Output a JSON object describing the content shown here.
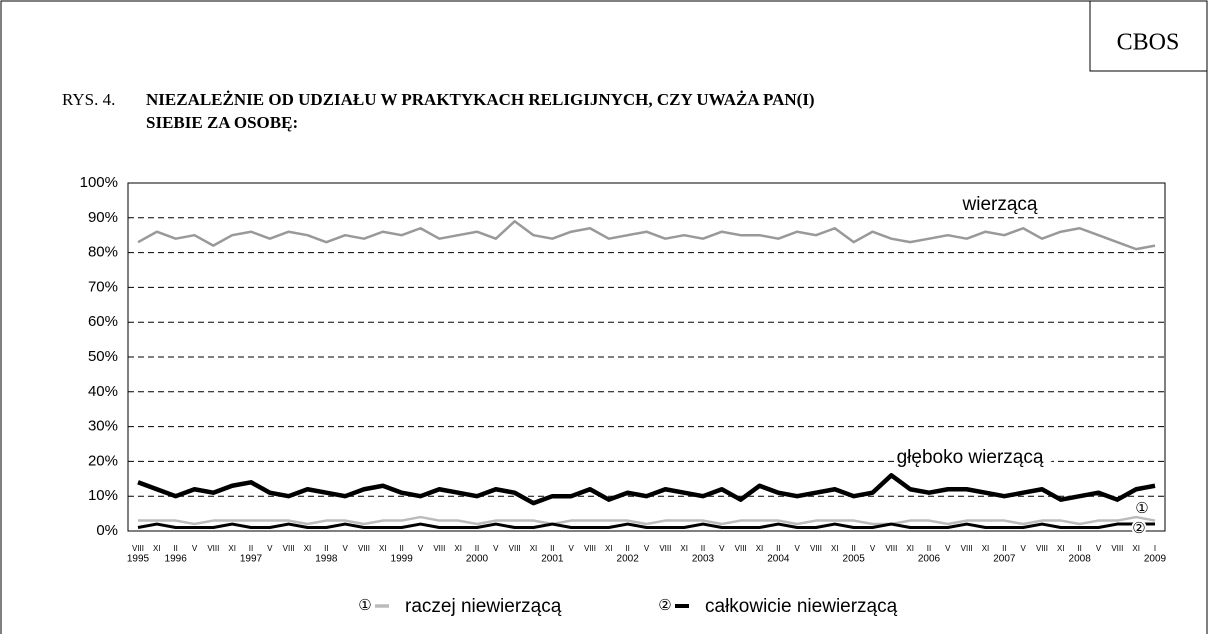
{
  "header": {
    "badge": "CBOS",
    "figure_no": "RYS. 4.",
    "title_line1": "NIEZALEŻNIE OD UDZIAŁU W PRAKTYKACH RELIGIJNYCH, CZY UWAŻA PAN(I)",
    "title_line2": "SIEBIE ZA OSOBĘ:"
  },
  "chart_data": {
    "type": "line",
    "categories": [
      "VIII",
      "XI",
      "II",
      "V",
      "VIII",
      "XI",
      "II",
      "V",
      "VIII",
      "XI",
      "II",
      "V",
      "VIII",
      "XI",
      "II",
      "V",
      "VIII",
      "XI",
      "II",
      "V",
      "VIII",
      "XI",
      "II",
      "V",
      "VIII",
      "XI",
      "II",
      "V",
      "VIII",
      "XI",
      "II",
      "V",
      "VIII",
      "XI",
      "II",
      "V",
      "VIII",
      "XI",
      "II",
      "V",
      "VIII",
      "XI",
      "II",
      "V",
      "VIII",
      "XI",
      "II",
      "V",
      "VIII",
      "XI",
      "II",
      "V",
      "VIII",
      "XI",
      "I"
    ],
    "year_labels": [
      {
        "label": "1995",
        "index": 0
      },
      {
        "label": "1996",
        "index": 2
      },
      {
        "label": "1997",
        "index": 6
      },
      {
        "label": "1998",
        "index": 10
      },
      {
        "label": "1999",
        "index": 14
      },
      {
        "label": "2000",
        "index": 18
      },
      {
        "label": "2001",
        "index": 22
      },
      {
        "label": "2002",
        "index": 26
      },
      {
        "label": "2003",
        "index": 30
      },
      {
        "label": "2004",
        "index": 34
      },
      {
        "label": "2005",
        "index": 38
      },
      {
        "label": "2006",
        "index": 42
      },
      {
        "label": "2007",
        "index": 46
      },
      {
        "label": "2008",
        "index": 50
      },
      {
        "label": "2009",
        "index": 54
      }
    ],
    "ylim": [
      0,
      100
    ],
    "yticks": [
      {
        "value": 0,
        "label": "0%"
      },
      {
        "value": 10,
        "label": "10%"
      },
      {
        "value": 20,
        "label": "20%"
      },
      {
        "value": 30,
        "label": "30%"
      },
      {
        "value": 40,
        "label": "40%"
      },
      {
        "value": 50,
        "label": "50%"
      },
      {
        "value": 60,
        "label": "60%"
      },
      {
        "value": 70,
        "label": "70%"
      },
      {
        "value": 80,
        "label": "80%"
      },
      {
        "value": 90,
        "label": "90%"
      },
      {
        "value": 100,
        "label": "100%"
      }
    ],
    "grid": true,
    "series": [
      {
        "name": "wierzącą",
        "color": "#999999",
        "values": [
          83,
          86,
          84,
          85,
          82,
          85,
          86,
          84,
          86,
          85,
          83,
          85,
          84,
          86,
          85,
          87,
          84,
          85,
          86,
          84,
          89,
          85,
          84,
          86,
          87,
          84,
          85,
          86,
          84,
          85,
          84,
          86,
          85,
          85,
          84,
          86,
          85,
          87,
          83,
          86,
          84,
          83,
          84,
          85,
          84,
          86,
          85,
          87,
          84,
          86,
          87,
          85,
          83,
          81,
          82
        ]
      },
      {
        "name": "głęboko wierzącą",
        "color": "#000000",
        "values": [
          14,
          12,
          10,
          12,
          11,
          13,
          14,
          11,
          10,
          12,
          11,
          10,
          12,
          13,
          11,
          10,
          12,
          11,
          10,
          12,
          11,
          8,
          10,
          10,
          12,
          9,
          11,
          10,
          12,
          11,
          10,
          12,
          9,
          13,
          11,
          10,
          11,
          12,
          10,
          11,
          16,
          12,
          11,
          12,
          12,
          11,
          10,
          11,
          12,
          9,
          10,
          11,
          9,
          12,
          13
        ]
      },
      {
        "name": "raczej niewierzącą",
        "marker": "①",
        "color": "#bbbbbb",
        "values": [
          3,
          3,
          3,
          2,
          3,
          3,
          3,
          3,
          3,
          2,
          3,
          3,
          2,
          3,
          3,
          4,
          3,
          3,
          2,
          3,
          3,
          3,
          2,
          3,
          3,
          3,
          3,
          2,
          3,
          3,
          3,
          2,
          3,
          3,
          3,
          2,
          3,
          3,
          3,
          2,
          2,
          3,
          3,
          2,
          3,
          3,
          3,
          2,
          3,
          3,
          2,
          3,
          3,
          4,
          3
        ]
      },
      {
        "name": "całkowicie niewierzącą",
        "marker": "②",
        "color": "#000000",
        "values": [
          1,
          2,
          1,
          1,
          1,
          2,
          1,
          1,
          2,
          1,
          1,
          2,
          1,
          1,
          1,
          2,
          1,
          1,
          1,
          2,
          1,
          1,
          2,
          1,
          1,
          1,
          2,
          1,
          1,
          1,
          2,
          1,
          1,
          1,
          2,
          1,
          1,
          2,
          1,
          1,
          2,
          1,
          1,
          1,
          2,
          1,
          1,
          1,
          2,
          1,
          1,
          1,
          2,
          2,
          2
        ]
      }
    ]
  }
}
